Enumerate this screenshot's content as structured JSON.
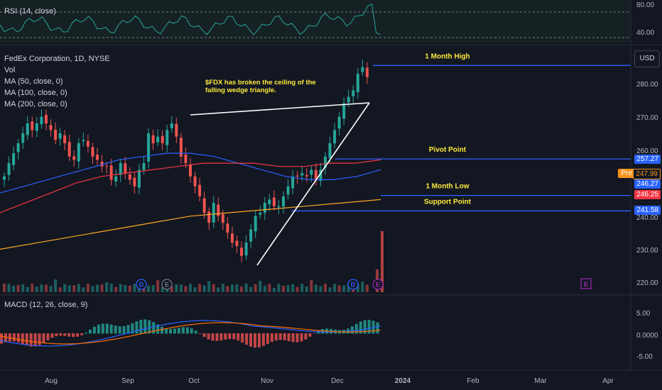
{
  "rsi": {
    "label": "RSI (14, close)",
    "ticks": [
      "80.00",
      "40.00"
    ]
  },
  "legend": {
    "title": "FedEx Corporation, 1D, NYSE",
    "vol": "Vol",
    "ma50": "MA (50, close, 0)",
    "ma100": "MA (100, close, 0)",
    "ma200": "MA (200, close, 0)"
  },
  "macd": {
    "label": "MACD (12, 26, close, 9)",
    "ticks": [
      "5.00",
      "0.0000",
      "-5.00"
    ]
  },
  "currency": "USD",
  "price_axis": [
    "280.00",
    "270.00",
    "260.00",
    "240.00",
    "230.00",
    "220.00"
  ],
  "price_tags": {
    "t257": "257.27",
    "pre_label": "Pre",
    "pre": "247.99",
    "t24627": "246.27",
    "t24625": "246.25",
    "t24158": "241.58"
  },
  "levels": {
    "high": "1 Month High",
    "pivot": "Pivot Point",
    "low": "1 Month Low",
    "support": "Support Point"
  },
  "annotation": [
    "$FDX has broken the ceiling of the",
    "falling wedge triangle."
  ],
  "time_axis": [
    "Aug",
    "Sep",
    "Oct",
    "Nov",
    "Dec",
    "2024",
    "Feb",
    "Mar",
    "Apr"
  ],
  "markers": {
    "dividend": "D",
    "earnings": "E"
  },
  "colors": {
    "background": "#131722",
    "up": "#26a69a",
    "down": "#ef5350",
    "ma50": "#2962ff",
    "ma100": "#f23645",
    "ma200": "#ffa726",
    "level": "#2962ff",
    "annotation": "#ffeb3b"
  },
  "chart_data": {
    "type": "line",
    "title": "FedEx Corporation, 1D, NYSE",
    "price_range": [
      215,
      290
    ],
    "candles_close_path": [
      252,
      256,
      259,
      262,
      265,
      268,
      266,
      268,
      270,
      268,
      266,
      263,
      265,
      262,
      258,
      257,
      262,
      263,
      261,
      258,
      257,
      255,
      255,
      251,
      252,
      256,
      253,
      251,
      249,
      254,
      256,
      265,
      262,
      264,
      262,
      266,
      268,
      264,
      258,
      256,
      252,
      249,
      246,
      241,
      238,
      244,
      240,
      238,
      235,
      232,
      231,
      228,
      232,
      236,
      240,
      241,
      244,
      245,
      243,
      243,
      246,
      249,
      252,
      252,
      253,
      252,
      254,
      251,
      254,
      258,
      262,
      266,
      270,
      274,
      276,
      278,
      283,
      285,
      282
    ],
    "levels": [
      {
        "name": "1 Month High",
        "value": 285.5
      },
      {
        "name": "Pivot Point",
        "value": 257.27
      },
      {
        "name": "1 Month Low",
        "value": 246.25
      },
      {
        "name": "Support Point",
        "value": 241.58
      }
    ],
    "ma50_path": [
      247,
      249,
      251,
      253,
      255,
      257,
      258,
      259,
      259,
      258,
      256,
      254,
      252,
      251,
      251,
      252,
      254
    ],
    "ma100_path": [
      241,
      244,
      247,
      250,
      252,
      253,
      254,
      255,
      256,
      256,
      256,
      255,
      255,
      256,
      256,
      257
    ],
    "ma200_path": [
      230,
      232,
      234,
      236,
      238,
      240,
      241,
      242,
      243,
      244,
      245
    ],
    "rsi_ticks": [
      80,
      40
    ],
    "macd_ticks": [
      5,
      0,
      -5
    ],
    "time_labels": [
      "Aug",
      "Sep",
      "Oct",
      "Nov",
      "Dec",
      "2024",
      "Feb",
      "Mar",
      "Apr"
    ]
  }
}
